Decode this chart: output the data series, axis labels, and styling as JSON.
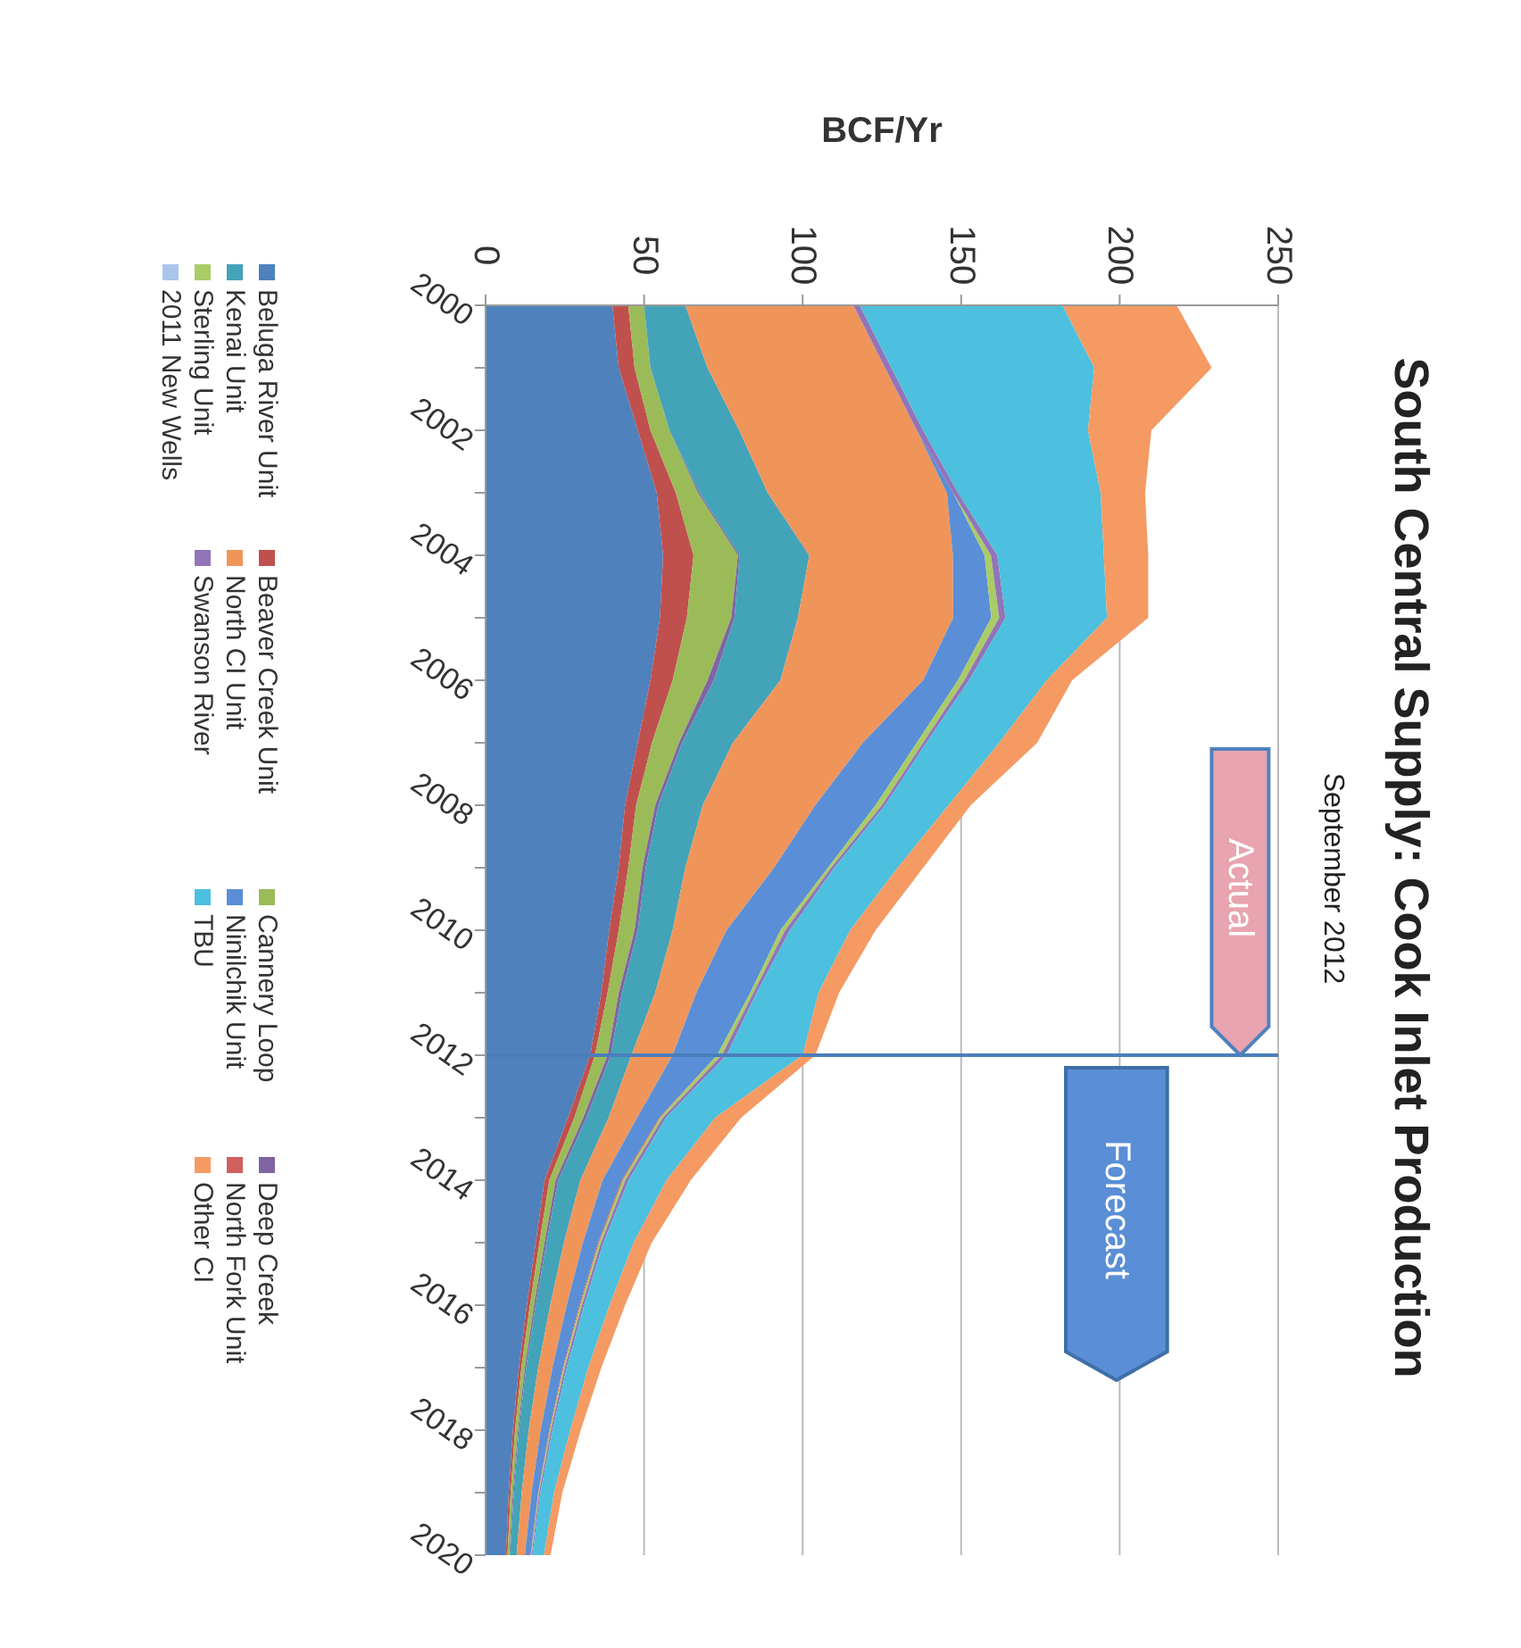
{
  "chart_data": {
    "type": "area",
    "orientation": "horizontal",
    "title": "South Central Supply: Cook Inlet Production",
    "subtitle": "September 2012",
    "xlabel": "BCF/Yr",
    "categories": [
      "2000",
      null,
      "2002",
      null,
      "2004",
      null,
      "2006",
      null,
      "2008",
      null,
      "2010",
      null,
      "2012",
      null,
      "2014",
      null,
      "2016",
      null,
      "2018",
      null,
      "2020"
    ],
    "xlim": [
      0,
      250
    ],
    "xticks": [
      0,
      50,
      100,
      150,
      200,
      250
    ],
    "stacked": true,
    "grid": "x",
    "legend": "left",
    "ref_lines": [
      {
        "axis": "y",
        "value": "2012",
        "color": "#4a7ebb"
      }
    ],
    "annotations": [
      "Actual",
      "Forecast"
    ],
    "series": [
      {
        "name": "Beluga River Unit",
        "color": "#4f81bd",
        "values": [
          40,
          42,
          48,
          54,
          56,
          55,
          52,
          48,
          44,
          42,
          39,
          36.5,
          33,
          26,
          18.6,
          15.8,
          13,
          10.5,
          8.6,
          7.3,
          6.4
        ]
      },
      {
        "name": "Beaver Creek Unit",
        "color": "#c0504d",
        "values": [
          5,
          5,
          4,
          6,
          9.6,
          8.5,
          7,
          4.5,
          3.5,
          3,
          3,
          2,
          1.5,
          2,
          1.5,
          1.2,
          1,
          0.8,
          0.7,
          0.6,
          0.5
        ]
      },
      {
        "name": "Cannery Loop",
        "color": "#9bbb59",
        "values": [
          5,
          5,
          6,
          7,
          14,
          14,
          11,
          8.5,
          6,
          4.5,
          5,
          3.5,
          4,
          2.8,
          2,
          1.6,
          1.3,
          1.1,
          0.9,
          0.7,
          0.6
        ]
      },
      {
        "name": "Deep Creek",
        "color": "#8064a2",
        "values": [
          0,
          0,
          0,
          0.5,
          0.5,
          1,
          2,
          1,
          1,
          1,
          1,
          1,
          1,
          1,
          0.8,
          0.6,
          0.5,
          0.4,
          0.3,
          0.3,
          0.2
        ]
      },
      {
        "name": "Kenai Unit",
        "color": "#43a3b8",
        "values": [
          13,
          18,
          22,
          21.5,
          22,
          20,
          21,
          16,
          14,
          12.5,
          11,
          10.5,
          6.5,
          7,
          7,
          5.5,
          4.6,
          3.8,
          3.1,
          2.5,
          2.1
        ]
      },
      {
        "name": "North CI Unit",
        "color": "#f0955a",
        "values": [
          53,
          56,
          56,
          56.5,
          45.3,
          49,
          45,
          41,
          35.5,
          28,
          17,
          13,
          13,
          9,
          7,
          6,
          5.2,
          4.5,
          3.8,
          3.1,
          2.6
        ]
      },
      {
        "name": "Ninilchik Unit",
        "color": "#5a8ed6",
        "values": [
          0,
          0,
          0,
          2,
          10,
          12,
          11,
          17,
          19,
          17,
          17,
          17,
          14,
          7,
          6,
          4.8,
          4,
          3.3,
          2.7,
          2.1,
          1.8
        ]
      },
      {
        "name": "North Fork Unit",
        "color": "#d0605d",
        "values": [
          0,
          0,
          0,
          0,
          0,
          0,
          0,
          0,
          0,
          0,
          0,
          0,
          0,
          0.3,
          0.4,
          0.3,
          0.3,
          0.2,
          0.2,
          0.1,
          0.1
        ]
      },
      {
        "name": "Sterling Unit",
        "color": "#a9cc66",
        "values": [
          0,
          0,
          0,
          0,
          2,
          2.5,
          2,
          2,
          2,
          1,
          1.5,
          1,
          1.5,
          0.8,
          0.8,
          0.6,
          0.5,
          0.4,
          0.3,
          0.2,
          0.2
        ]
      },
      {
        "name": "Swanson River",
        "color": "#9274b8",
        "values": [
          2,
          2,
          2,
          1.5,
          2,
          2,
          1.5,
          1,
          1,
          1,
          1.5,
          1,
          1.5,
          1,
          1,
          0.8,
          0.7,
          0.6,
          0.5,
          0.4,
          0.3
        ]
      },
      {
        "name": "TBU",
        "color": "#4cc0de",
        "values": [
          64,
          64,
          52,
          45,
          33.6,
          32,
          24.5,
          23,
          20,
          20,
          19,
          19.5,
          24,
          15.5,
          12,
          9.5,
          8,
          6.8,
          5.6,
          4.3,
          3.6
        ]
      },
      {
        "name": "Other CI",
        "color": "#f59a62",
        "values": [
          36,
          37,
          20,
          14,
          14,
          13,
          8,
          12,
          7,
          8,
          8,
          6.5,
          4,
          8.2,
          7.6,
          5.7,
          4.9,
          4.1,
          3.3,
          2.6,
          2.1
        ]
      },
      {
        "name": "2011 New Wells",
        "color": "#a9c6ea",
        "values": [
          null,
          null,
          null,
          null,
          null,
          null,
          null,
          null,
          null,
          null,
          null,
          null,
          null,
          null,
          null,
          null,
          null,
          null,
          null,
          null,
          null
        ]
      }
    ]
  }
}
